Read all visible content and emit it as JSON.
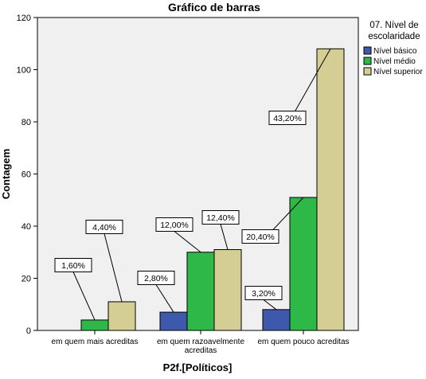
{
  "chart_data": {
    "type": "bar",
    "title": "Gráfico de barras",
    "xlabel": "P2f.[Políticos]",
    "ylabel": "Contagem",
    "categories": [
      [
        "em quem mais acreditas"
      ],
      [
        "em quem razoavelmente",
        "acreditas"
      ],
      [
        "em quem pouco acreditas"
      ]
    ],
    "series": [
      {
        "name": "Nível básico",
        "values": [
          0,
          7,
          8
        ]
      },
      {
        "name": "Nível médio",
        "values": [
          4,
          30,
          51
        ]
      },
      {
        "name": "Nível superior",
        "values": [
          11,
          31,
          108
        ]
      }
    ],
    "data_labels": [
      {
        "category": 0,
        "series": 1,
        "text": "1,60%"
      },
      {
        "category": 0,
        "series": 2,
        "text": "4,40%"
      },
      {
        "category": 1,
        "series": 0,
        "text": "2,80%"
      },
      {
        "category": 1,
        "series": 1,
        "text": "12,00%"
      },
      {
        "category": 1,
        "series": 2,
        "text": "12,40%"
      },
      {
        "category": 2,
        "series": 0,
        "text": "3,20%"
      },
      {
        "category": 2,
        "series": 1,
        "text": "20,40%"
      },
      {
        "category": 2,
        "series": 2,
        "text": "43,20%"
      }
    ],
    "ylim": [
      0,
      120
    ],
    "yticks": [
      0,
      20,
      40,
      60,
      80,
      100,
      120
    ],
    "grid": false,
    "legend": {
      "title": [
        "07. Nível de",
        "escolaridade"
      ],
      "placement": "right"
    },
    "colors": {
      "series": [
        "#3e58ac",
        "#2eb848",
        "#d4ce95"
      ],
      "plot_background": "#f0f0f0",
      "axis": "#000000"
    }
  }
}
